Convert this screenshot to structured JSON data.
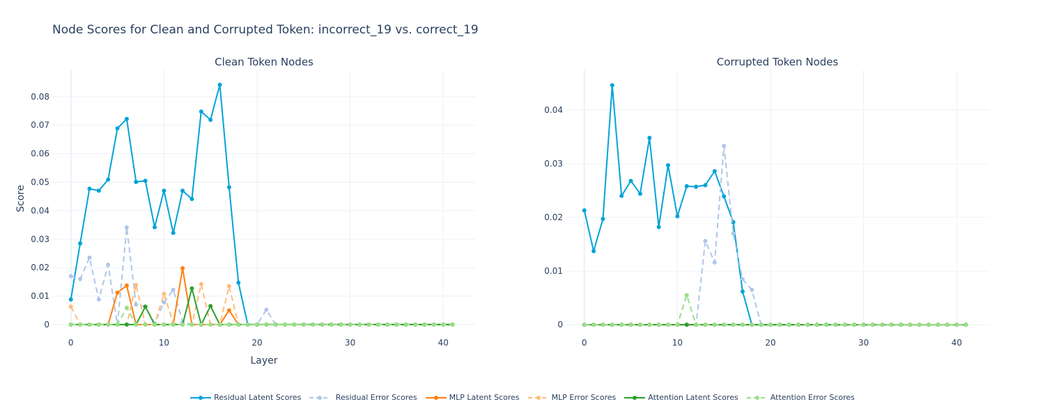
{
  "title": "Node Scores for Clean and Corrupted Token: incorrect_19 vs. correct_19",
  "legend_entries": [
    {
      "label": "Residual Latent Scores",
      "color": "#00a3d7",
      "dash": false
    },
    {
      "label": " Residual Error Scores",
      "color": "#aec7e8",
      "dash": true
    },
    {
      "label": "MLP Latent Scores",
      "color": "#ff7f0e",
      "dash": false
    },
    {
      "label": "MLP Error Scores",
      "color": "#ffbb78",
      "dash": true
    },
    {
      "label": "Attention Latent Scores",
      "color": "#2ca02c",
      "dash": false
    },
    {
      "label": "Attention Error Scores",
      "color": "#98df8a",
      "dash": true
    }
  ],
  "chart_data": [
    {
      "type": "line",
      "title": "Clean Token Nodes",
      "xlabel": "Layer",
      "ylabel": "Score",
      "xlim": [
        -2,
        43.5
      ],
      "ylim": [
        -0.001,
        0.0895
      ],
      "xticks": [
        0,
        10,
        20,
        30,
        40
      ],
      "yticks": [
        0,
        0.01,
        0.02,
        0.03,
        0.04,
        0.05,
        0.06,
        0.07,
        0.08
      ],
      "ytick_labels": [
        "0",
        "0.01",
        "0.02",
        "0.03",
        "0.04",
        "0.05",
        "0.06",
        "0.07",
        "0.08"
      ],
      "grid": true,
      "x": [
        0,
        1,
        2,
        3,
        4,
        5,
        6,
        7,
        8,
        9,
        10,
        11,
        12,
        13,
        14,
        15,
        16,
        17,
        18,
        19,
        20,
        21,
        22,
        23,
        24,
        25,
        26,
        27,
        28,
        29,
        30,
        31,
        32,
        33,
        34,
        35,
        36,
        37,
        38,
        39,
        40,
        41
      ],
      "series": [
        {
          "name": "Residual Latent Scores",
          "color": "#00a3d7",
          "dash": false,
          "values": [
            0.0088,
            0.0285,
            0.0477,
            0.047,
            0.0509,
            0.0689,
            0.0722,
            0.0501,
            0.0505,
            0.0342,
            0.047,
            0.0322,
            0.047,
            0.0441,
            0.0748,
            0.0719,
            0.0842,
            0.0482,
            0.0147,
            0,
            0,
            0,
            0,
            0,
            0,
            0,
            0,
            0,
            0,
            0,
            0,
            0,
            0,
            0,
            0,
            0,
            0,
            0,
            0,
            0,
            0,
            0
          ]
        },
        {
          "name": " Residual Error Scores",
          "color": "#aec7e8",
          "dash": true,
          "values": [
            0.017,
            0.016,
            0.0235,
            0.0088,
            0.021,
            0,
            0.0341,
            0.007,
            0.0062,
            0.0005,
            0.0078,
            0.0122,
            0.001,
            0,
            0,
            0,
            0,
            0,
            0,
            0,
            0,
            0.0052,
            0,
            0,
            0,
            0,
            0,
            0,
            0,
            0,
            0,
            0,
            0,
            0,
            0,
            0,
            0,
            0,
            0,
            0,
            0,
            0
          ]
        },
        {
          "name": "MLP Latent Scores",
          "color": "#ff7f0e",
          "dash": false,
          "values": [
            0,
            0,
            0,
            0,
            0,
            0.0112,
            0.0137,
            0,
            0,
            0,
            0,
            0,
            0.0198,
            0,
            0,
            0,
            0,
            0.005,
            0,
            0,
            0,
            0,
            0,
            0,
            0,
            0,
            0,
            0,
            0,
            0,
            0,
            0,
            0,
            0,
            0,
            0,
            0,
            0,
            0,
            0,
            0,
            0
          ]
        },
        {
          "name": "MLP Error Scores",
          "color": "#ffbb78",
          "dash": true,
          "values": [
            0.0063,
            0,
            0,
            0,
            0,
            0,
            0,
            0.0139,
            0,
            0,
            0.0108,
            0.0005,
            0,
            0,
            0.0142,
            0,
            0,
            0.0135,
            0,
            0,
            0,
            0,
            0,
            0,
            0,
            0,
            0,
            0,
            0,
            0,
            0,
            0,
            0,
            0,
            0,
            0,
            0,
            0,
            0,
            0,
            0,
            0
          ]
        },
        {
          "name": "Attention Latent Scores",
          "color": "#2ca02c",
          "dash": false,
          "values": [
            0,
            0,
            0,
            0,
            0,
            0,
            0,
            0,
            0.0063,
            0,
            0,
            0,
            0,
            0.0127,
            0,
            0.0065,
            0,
            0,
            0,
            0,
            0,
            0,
            0,
            0,
            0,
            0,
            0,
            0,
            0,
            0,
            0,
            0,
            0,
            0,
            0,
            0,
            0,
            0,
            0,
            0,
            0,
            0
          ]
        },
        {
          "name": "Attention Error Scores",
          "color": "#98df8a",
          "dash": true,
          "values": [
            0,
            0,
            0,
            0,
            0,
            0,
            0.0059,
            0,
            0,
            0,
            0,
            0,
            0,
            0,
            0,
            0,
            0,
            0,
            0,
            0,
            0,
            0,
            0,
            0,
            0,
            0,
            0,
            0,
            0,
            0,
            0,
            0,
            0,
            0,
            0,
            0,
            0,
            0,
            0,
            0,
            0,
            0
          ]
        }
      ]
    },
    {
      "type": "line",
      "title": "Corrupted Token Nodes",
      "xlabel": "",
      "ylabel": "",
      "xlim": [
        -2,
        43.5
      ],
      "ylim": [
        -0.0005,
        0.0475
      ],
      "xticks": [
        0,
        10,
        20,
        30,
        40
      ],
      "yticks": [
        0,
        0.01,
        0.02,
        0.03,
        0.04
      ],
      "ytick_labels": [
        "0",
        "0.01",
        "0.02",
        "0.03",
        "0.04"
      ],
      "grid": true,
      "x": [
        0,
        1,
        2,
        3,
        4,
        5,
        6,
        7,
        8,
        9,
        10,
        11,
        12,
        13,
        14,
        15,
        16,
        17,
        18,
        19,
        20,
        21,
        22,
        23,
        24,
        25,
        26,
        27,
        28,
        29,
        30,
        31,
        32,
        33,
        34,
        35,
        36,
        37,
        38,
        39,
        40,
        41
      ],
      "series": [
        {
          "name": "Residual Latent Scores",
          "color": "#00a3d7",
          "dash": false,
          "values": [
            0.0213,
            0.0137,
            0.0197,
            0.0446,
            0.024,
            0.0268,
            0.0244,
            0.0348,
            0.0182,
            0.0297,
            0.0202,
            0.0258,
            0.0257,
            0.026,
            0.0286,
            0.0239,
            0.0191,
            0.0062,
            0,
            0,
            0,
            0,
            0,
            0,
            0,
            0,
            0,
            0,
            0,
            0,
            0,
            0,
            0,
            0,
            0,
            0,
            0,
            0,
            0,
            0,
            0,
            0
          ]
        },
        {
          "name": " Residual Error Scores",
          "color": "#aec7e8",
          "dash": true,
          "values": [
            0,
            0,
            0,
            0,
            0,
            0,
            0,
            0,
            0,
            0,
            0,
            0,
            0,
            0.0156,
            0.0116,
            0.0333,
            0.017,
            0.0085,
            0.0065,
            0,
            0,
            0,
            0,
            0,
            0,
            0,
            0,
            0,
            0,
            0,
            0,
            0,
            0,
            0,
            0,
            0,
            0,
            0,
            0,
            0,
            0,
            0
          ]
        },
        {
          "name": "MLP Latent Scores",
          "color": "#ff7f0e",
          "dash": false,
          "values": [
            0,
            0,
            0,
            0,
            0,
            0,
            0,
            0,
            0,
            0,
            0,
            0,
            0,
            0,
            0,
            0,
            0,
            0,
            0,
            0,
            0,
            0,
            0,
            0,
            0,
            0,
            0,
            0,
            0,
            0,
            0,
            0,
            0,
            0,
            0,
            0,
            0,
            0,
            0,
            0,
            0,
            0
          ]
        },
        {
          "name": "MLP Error Scores",
          "color": "#ffbb78",
          "dash": true,
          "values": [
            0,
            0,
            0,
            0,
            0,
            0,
            0,
            0,
            0,
            0,
            0,
            0,
            0,
            0,
            0,
            0,
            0,
            0,
            0,
            0,
            0,
            0,
            0,
            0,
            0,
            0,
            0,
            0,
            0,
            0,
            0,
            0,
            0,
            0,
            0,
            0,
            0,
            0,
            0,
            0,
            0,
            0
          ]
        },
        {
          "name": "Attention Latent Scores",
          "color": "#2ca02c",
          "dash": false,
          "values": [
            0,
            0,
            0,
            0,
            0,
            0,
            0,
            0,
            0,
            0,
            0,
            0,
            0,
            0,
            0,
            0,
            0,
            0,
            0,
            0,
            0,
            0,
            0,
            0,
            0,
            0,
            0,
            0,
            0,
            0,
            0,
            0,
            0,
            0,
            0,
            0,
            0,
            0,
            0,
            0,
            0,
            0
          ]
        },
        {
          "name": "Attention Error Scores",
          "color": "#98df8a",
          "dash": true,
          "values": [
            0,
            0,
            0,
            0,
            0,
            0,
            0,
            0,
            0,
            0,
            0,
            0.0055,
            0,
            0,
            0,
            0,
            0,
            0,
            0,
            0,
            0,
            0,
            0,
            0,
            0,
            0,
            0,
            0,
            0,
            0,
            0,
            0,
            0,
            0,
            0,
            0,
            0,
            0,
            0,
            0,
            0,
            0
          ]
        }
      ]
    }
  ]
}
